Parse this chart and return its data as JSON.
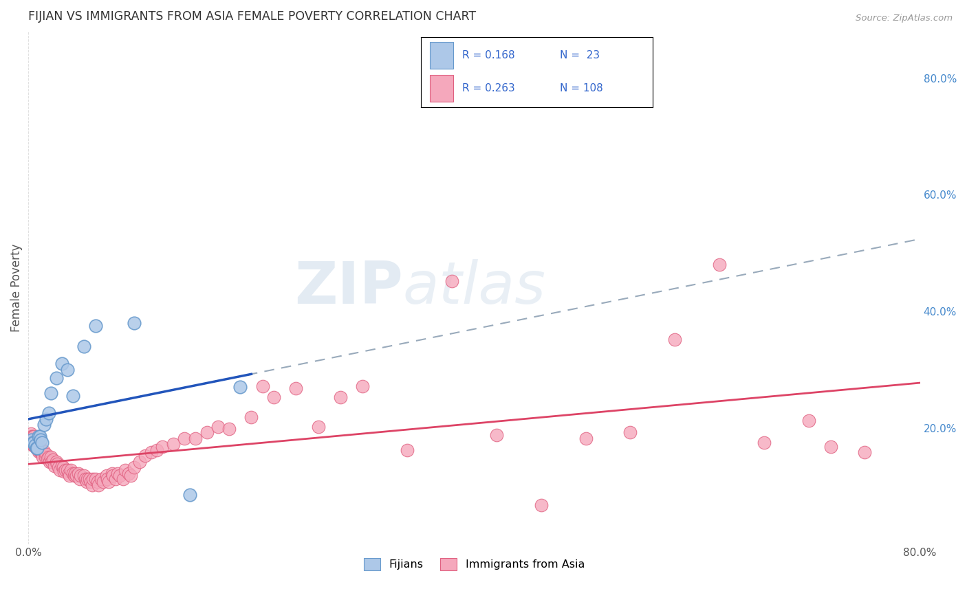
{
  "title": "FIJIAN VS IMMIGRANTS FROM ASIA FEMALE POVERTY CORRELATION CHART",
  "source": "Source: ZipAtlas.com",
  "ylabel": "Female Poverty",
  "right_yticks": [
    "80.0%",
    "60.0%",
    "40.0%",
    "20.0%"
  ],
  "right_ytick_vals": [
    0.8,
    0.6,
    0.4,
    0.2
  ],
  "xlim": [
    0.0,
    0.8
  ],
  "ylim": [
    0.0,
    0.88
  ],
  "watermark_zip": "ZIP",
  "watermark_atlas": "atlas",
  "fijian_color": "#adc8e8",
  "asia_color": "#f5a8bc",
  "fijian_edge": "#6699cc",
  "asia_edge": "#e06080",
  "trend_fijian_solid_color": "#2255bb",
  "trend_fijian_dashed_color": "#99aabb",
  "trend_asia_color": "#dd4466",
  "background_color": "#ffffff",
  "grid_color": "#cccccc",
  "legend_box_color": "#cccccc",
  "axis_label_color": "#555555",
  "right_tick_color": "#4488cc",
  "title_color": "#333333",
  "source_color": "#999999",
  "fijian_x": [
    0.003,
    0.004,
    0.005,
    0.006,
    0.007,
    0.008,
    0.009,
    0.01,
    0.011,
    0.012,
    0.014,
    0.016,
    0.018,
    0.02,
    0.025,
    0.03,
    0.035,
    0.04,
    0.05,
    0.06,
    0.095,
    0.145,
    0.19
  ],
  "fijian_y": [
    0.18,
    0.175,
    0.175,
    0.17,
    0.165,
    0.165,
    0.185,
    0.185,
    0.18,
    0.175,
    0.205,
    0.215,
    0.225,
    0.26,
    0.285,
    0.31,
    0.3,
    0.255,
    0.34,
    0.375,
    0.38,
    0.085,
    0.27
  ],
  "asia_x": [
    0.002,
    0.003,
    0.003,
    0.004,
    0.004,
    0.005,
    0.005,
    0.006,
    0.006,
    0.007,
    0.007,
    0.008,
    0.008,
    0.009,
    0.009,
    0.01,
    0.01,
    0.011,
    0.011,
    0.012,
    0.013,
    0.014,
    0.015,
    0.016,
    0.017,
    0.018,
    0.019,
    0.02,
    0.021,
    0.022,
    0.023,
    0.025,
    0.026,
    0.027,
    0.028,
    0.03,
    0.031,
    0.032,
    0.033,
    0.035,
    0.036,
    0.037,
    0.038,
    0.04,
    0.041,
    0.042,
    0.043,
    0.045,
    0.046,
    0.047,
    0.05,
    0.051,
    0.052,
    0.053,
    0.055,
    0.056,
    0.057,
    0.058,
    0.06,
    0.062,
    0.063,
    0.065,
    0.067,
    0.07,
    0.071,
    0.072,
    0.075,
    0.076,
    0.078,
    0.08,
    0.082,
    0.085,
    0.087,
    0.09,
    0.092,
    0.095,
    0.1,
    0.105,
    0.11,
    0.115,
    0.12,
    0.13,
    0.14,
    0.15,
    0.16,
    0.17,
    0.18,
    0.2,
    0.21,
    0.22,
    0.24,
    0.26,
    0.28,
    0.3,
    0.34,
    0.38,
    0.42,
    0.46,
    0.5,
    0.54,
    0.58,
    0.62,
    0.66,
    0.7,
    0.72,
    0.75
  ],
  "asia_y": [
    0.19,
    0.185,
    0.175,
    0.185,
    0.17,
    0.185,
    0.17,
    0.175,
    0.17,
    0.17,
    0.165,
    0.17,
    0.165,
    0.165,
    0.16,
    0.165,
    0.16,
    0.165,
    0.16,
    0.155,
    0.15,
    0.16,
    0.15,
    0.155,
    0.148,
    0.15,
    0.142,
    0.15,
    0.142,
    0.145,
    0.135,
    0.142,
    0.138,
    0.132,
    0.128,
    0.135,
    0.132,
    0.125,
    0.128,
    0.128,
    0.122,
    0.118,
    0.128,
    0.122,
    0.118,
    0.122,
    0.118,
    0.122,
    0.112,
    0.118,
    0.118,
    0.112,
    0.108,
    0.112,
    0.112,
    0.108,
    0.102,
    0.112,
    0.112,
    0.108,
    0.102,
    0.112,
    0.108,
    0.118,
    0.112,
    0.108,
    0.122,
    0.118,
    0.112,
    0.122,
    0.118,
    0.112,
    0.128,
    0.122,
    0.118,
    0.132,
    0.142,
    0.152,
    0.158,
    0.162,
    0.168,
    0.172,
    0.182,
    0.182,
    0.192,
    0.202,
    0.198,
    0.218,
    0.272,
    0.252,
    0.268,
    0.202,
    0.252,
    0.272,
    0.162,
    0.452,
    0.188,
    0.068,
    0.182,
    0.192,
    0.352,
    0.48,
    0.175,
    0.212,
    0.168,
    0.158
  ]
}
